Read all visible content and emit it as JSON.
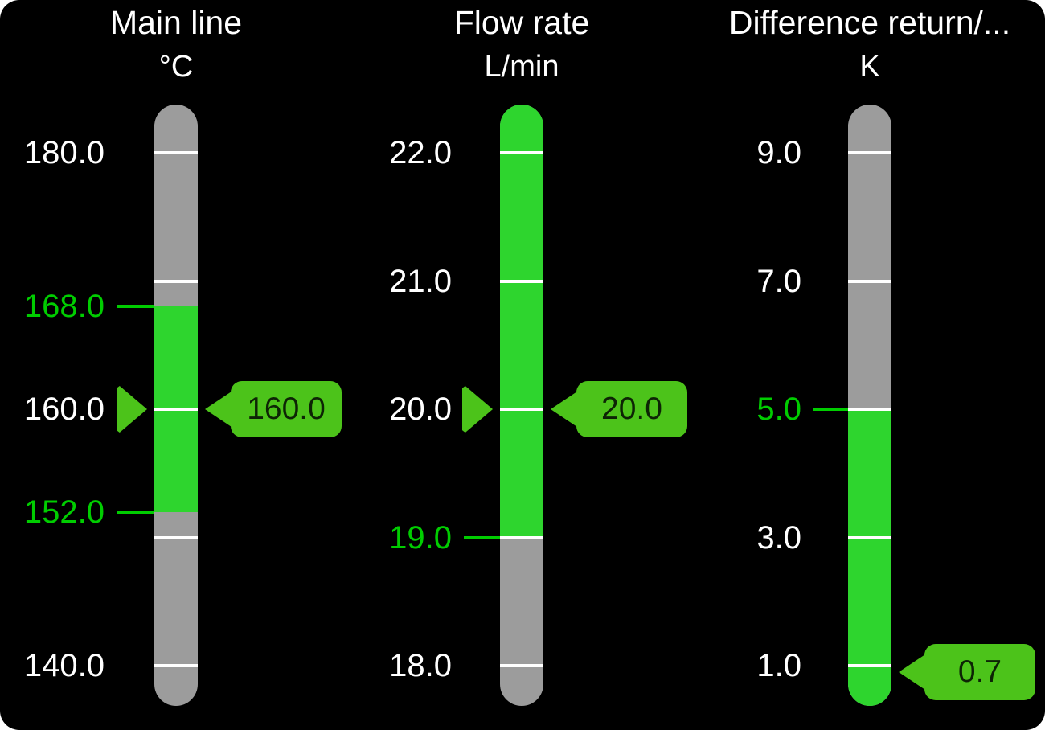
{
  "colors": {
    "panel_background": "#000000",
    "bar_gray": "#9c9c9c",
    "bar_green": "#2ed52e",
    "limit_green": "#00cd00",
    "badge_green": "#4cc31a",
    "badge_text": "#0d2405",
    "tick_white": "#ffffff",
    "label_white": "#ffffff"
  },
  "gauges": [
    {
      "id": "main-line",
      "title": "Main line",
      "unit": "°C",
      "scale": {
        "max": 180.0,
        "min": 140.0
      },
      "ticks": [
        180,
        170,
        160,
        150,
        140
      ],
      "labels": [
        {
          "text": "180.0",
          "value": 180
        },
        {
          "text": "160.0",
          "value": 160
        },
        {
          "text": "140.0",
          "value": 140
        }
      ],
      "limits": [
        {
          "text": "168.0",
          "value": 168
        },
        {
          "text": "152.0",
          "value": 152
        }
      ],
      "green_zone": {
        "min": 152.0,
        "max": 168.0
      },
      "value": 160.0,
      "value_label": "160.0",
      "pointer": true
    },
    {
      "id": "flow-rate",
      "title": "Flow rate",
      "unit": "L/min",
      "scale": {
        "max": 22.0,
        "min": 18.0
      },
      "ticks": [
        22,
        21,
        20,
        19,
        18
      ],
      "labels": [
        {
          "text": "22.0",
          "value": 22
        },
        {
          "text": "21.0",
          "value": 21
        },
        {
          "text": "20.0",
          "value": 20
        },
        {
          "text": "18.0",
          "value": 18
        }
      ],
      "limits": [
        {
          "text": "19.0",
          "value": 19
        }
      ],
      "green_zone": {
        "min": 19.0,
        "max": null
      },
      "value": 20.0,
      "value_label": "20.0",
      "pointer": true
    },
    {
      "id": "difference-return",
      "title": "Difference return/...",
      "unit": "K",
      "scale": {
        "max": 9.0,
        "min": 1.0
      },
      "ticks": [
        9,
        7,
        5,
        3,
        1
      ],
      "labels": [
        {
          "text": "9.0",
          "value": 9
        },
        {
          "text": "7.0",
          "value": 7
        },
        {
          "text": "3.0",
          "value": 3
        },
        {
          "text": "1.0",
          "value": 1
        }
      ],
      "limits": [
        {
          "text": "5.0",
          "value": 5
        }
      ],
      "green_zone": {
        "min": null,
        "max": 5.0
      },
      "value": 0.7,
      "value_label": "0.7",
      "pointer": false
    }
  ]
}
